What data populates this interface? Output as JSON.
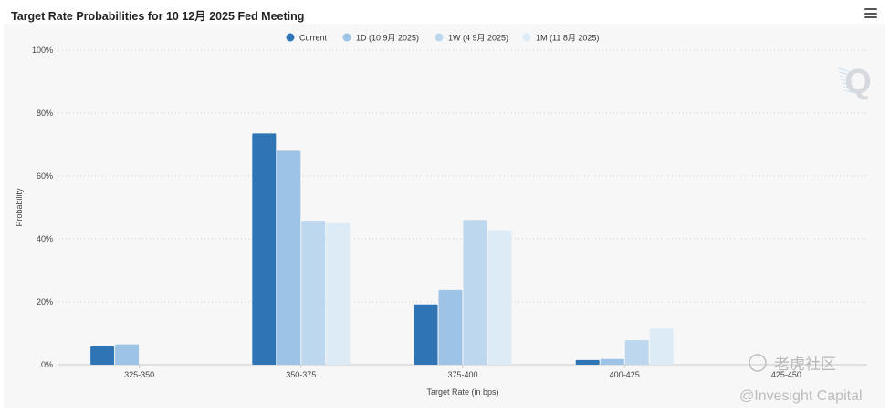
{
  "header": {
    "title": "Target Rate Probabilities for 10 12月 2025 Fed Meeting"
  },
  "watermark": {
    "line1": "老虎社区",
    "line2": "@Invesight Capital",
    "logo": "Q"
  },
  "colors": {
    "current": "#2f75b5",
    "d1": "#9dc3e6",
    "w1": "#bdd7ee",
    "m1": "#ddebf7",
    "grid": "#cfcfcf",
    "background": "#f7f7f7"
  },
  "icons": {
    "menu": "hamburger-menu-icon",
    "logo": "q-logo-icon"
  },
  "chart_data": {
    "type": "bar",
    "title": "Target Rate Probabilities for 10 12月 2025 Fed Meeting",
    "xlabel": "Target Rate (in bps)",
    "ylabel": "Probability",
    "categories": [
      "325-350",
      "350-375",
      "375-400",
      "400-425",
      "425-450"
    ],
    "ylim": [
      0,
      100
    ],
    "yticks": [
      0,
      20,
      40,
      60,
      80,
      100
    ],
    "ytick_labels": [
      "0%",
      "20%",
      "40%",
      "60%",
      "80%",
      "100%"
    ],
    "grid": "horizontal dotted",
    "legend_position": "top-center",
    "series": [
      {
        "name": "Current",
        "color": "#2f75b5",
        "values": [
          5.8,
          73.5,
          19.2,
          1.5,
          0
        ]
      },
      {
        "name": "1D (10 9月 2025)",
        "color": "#9dc3e6",
        "values": [
          6.5,
          68,
          23.8,
          1.8,
          0
        ]
      },
      {
        "name": "1W (4 9月 2025)",
        "color": "#bdd7ee",
        "values": [
          0,
          45.8,
          46,
          7.8,
          0
        ]
      },
      {
        "name": "1M (11 8月 2025)",
        "color": "#ddebf7",
        "values": [
          0,
          45,
          42.8,
          11.5,
          0
        ]
      }
    ]
  }
}
